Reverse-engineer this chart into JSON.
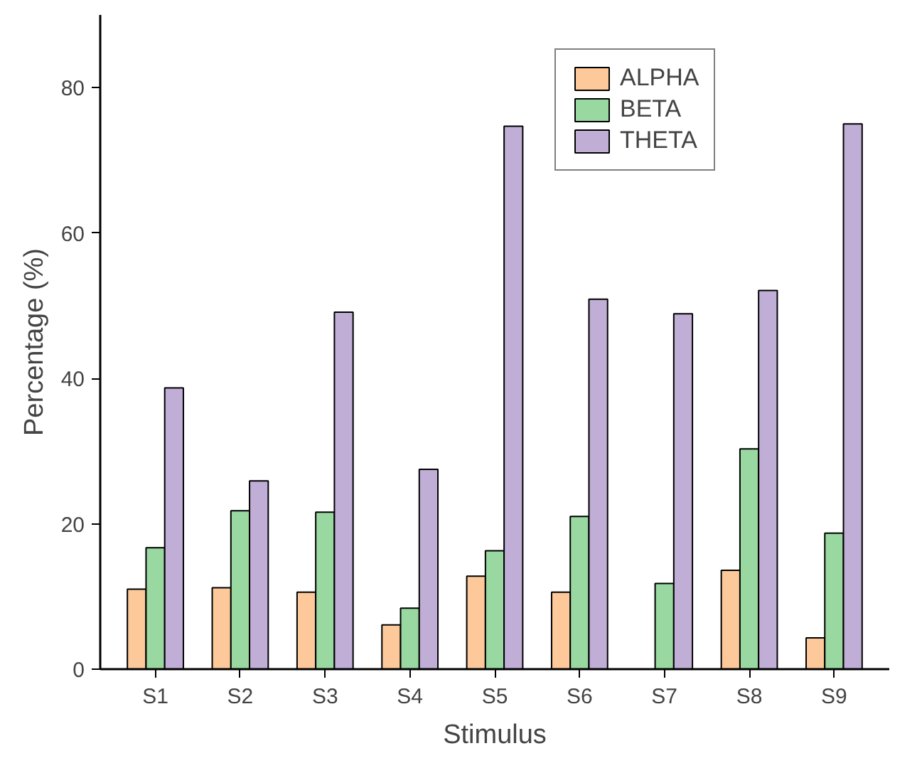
{
  "chart_data": {
    "type": "bar",
    "xlabel": "Stimulus",
    "ylabel": "Percentage (%)",
    "categories": [
      "S1",
      "S2",
      "S3",
      "S4",
      "S5",
      "S6",
      "S7",
      "S8",
      "S9"
    ],
    "series": [
      {
        "name": "ALPHA",
        "color": "#fdc99b",
        "values": [
          11.0,
          11.2,
          10.6,
          6.1,
          12.8,
          10.6,
          null,
          13.6,
          4.3
        ]
      },
      {
        "name": "BETA",
        "color": "#99d8a0",
        "values": [
          16.7,
          21.8,
          21.6,
          8.4,
          16.3,
          21.0,
          11.8,
          30.3,
          18.7
        ]
      },
      {
        "name": "THETA",
        "color": "#c0aed6",
        "values": [
          38.7,
          25.9,
          49.1,
          27.5,
          74.7,
          50.9,
          48.9,
          52.1,
          75.0
        ]
      }
    ],
    "ylim": [
      0,
      90
    ],
    "yticks": [
      0,
      20,
      40,
      60,
      80
    ],
    "grid": false,
    "legend": "top right"
  }
}
